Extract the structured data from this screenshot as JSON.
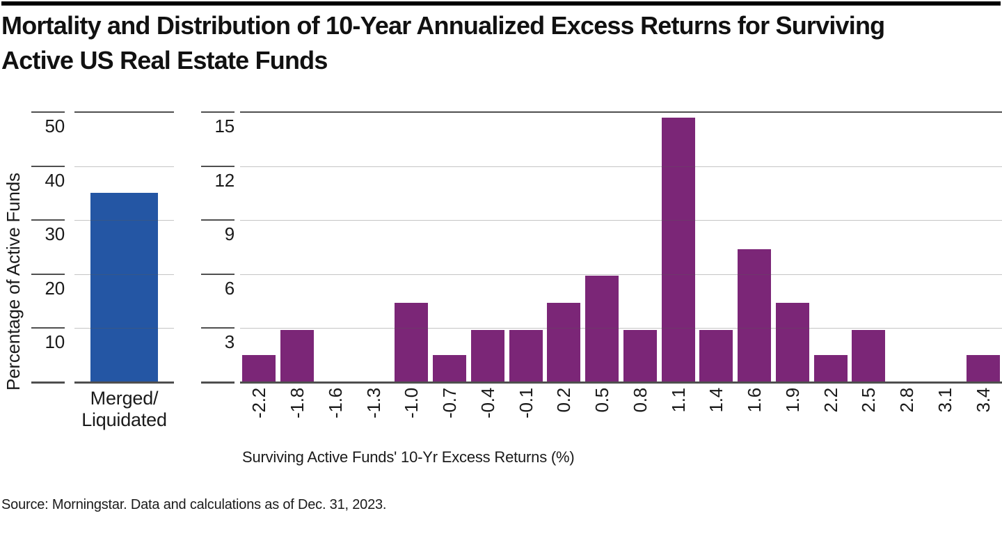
{
  "header": {
    "title_lines": [
      "Mortality and Distribution of 10-Year Annualized Excess Returns for Surviving",
      "Active US Real Estate Funds"
    ]
  },
  "footer": {
    "source": "Source: Morningstar. Data and calculations as of Dec. 31, 2023."
  },
  "colors": {
    "mortality_bar": "#2456A4",
    "distribution_bar": "#7B2677",
    "axis_dark": "#4f4f4f",
    "grid_light": "#c4c4c4",
    "top_rule": "#000000",
    "text": "#1a1a1a"
  },
  "chart_data": [
    {
      "type": "bar",
      "panel": "mortality",
      "categories": [
        "Merged/\nLiquidated"
      ],
      "values": [
        35
      ],
      "ylabel": "Percentage of Active Funds",
      "xlabel": "",
      "ylim": [
        0,
        50
      ],
      "yticks": [
        10,
        20,
        30,
        40,
        50
      ],
      "grid": true,
      "legend": "none",
      "bar_color": "#2456A4"
    },
    {
      "type": "bar",
      "panel": "distribution-histogram",
      "categories": [
        "-2.2",
        "-1.8",
        "-1.6",
        "-1.3",
        "-1.0",
        "-0.7",
        "-0.4",
        "-0.1",
        "0.2",
        "0.5",
        "0.8",
        "1.1",
        "1.4",
        "1.6",
        "1.9",
        "2.2",
        "2.5",
        "2.8",
        "3.1",
        "3.4"
      ],
      "values": [
        1.5,
        2.9,
        0,
        0,
        4.4,
        1.5,
        2.9,
        2.9,
        4.4,
        5.9,
        2.9,
        14.7,
        2.9,
        7.4,
        4.4,
        1.5,
        2.9,
        0,
        0,
        1.5
      ],
      "ylabel": "",
      "xlabel": "Surviving Active Funds' 10-Yr Excess Returns (%)",
      "ylim": [
        0,
        15
      ],
      "yticks": [
        3,
        6,
        9,
        12,
        15
      ],
      "grid": true,
      "legend": "none",
      "bar_color": "#7B2677"
    }
  ]
}
